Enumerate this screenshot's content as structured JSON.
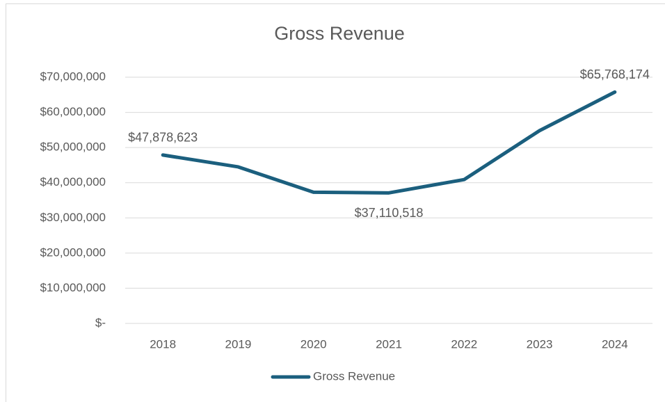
{
  "chart_data": {
    "type": "line",
    "title": "Gross Revenue",
    "categories": [
      "2018",
      "2019",
      "2020",
      "2021",
      "2022",
      "2023",
      "2024"
    ],
    "series": [
      {
        "name": "Gross Revenue",
        "color": "#1b5f7e",
        "values": [
          47878623,
          44500000,
          37300000,
          37110518,
          40900000,
          54800000,
          65768174
        ],
        "value_labels": [
          "$47,878,623",
          null,
          null,
          "$37,110,518",
          null,
          null,
          "$65,768,174"
        ]
      }
    ],
    "ylim": [
      0,
      70000000
    ],
    "yticks": [
      {
        "value": 0,
        "label": "$-"
      },
      {
        "value": 10000000,
        "label": "$10,000,000"
      },
      {
        "value": 20000000,
        "label": "$20,000,000"
      },
      {
        "value": 30000000,
        "label": "$30,000,000"
      },
      {
        "value": 40000000,
        "label": "$40,000,000"
      },
      {
        "value": 50000000,
        "label": "$50,000,000"
      },
      {
        "value": 60000000,
        "label": "$60,000,000"
      },
      {
        "value": 70000000,
        "label": "$70,000,000"
      }
    ],
    "grid": true,
    "legend": "bottom"
  }
}
